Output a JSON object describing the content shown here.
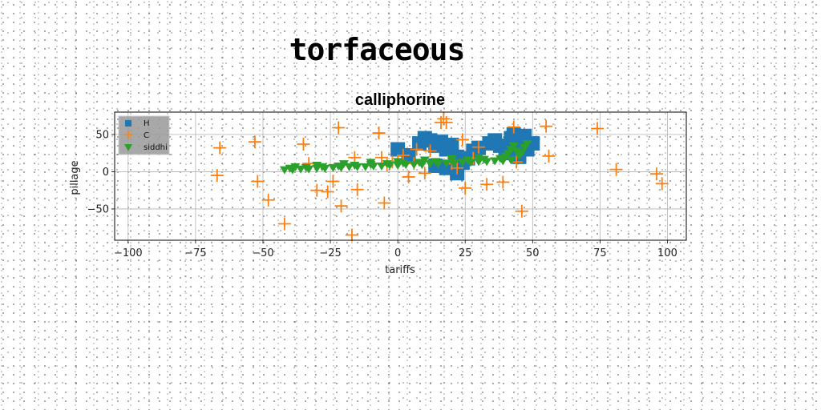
{
  "page": {
    "title": "torfaceous"
  },
  "chart_data": {
    "type": "scatter",
    "title": "calliphorine",
    "xlabel": "tariffs",
    "ylabel": "pillage",
    "xlim": [
      -105,
      107
    ],
    "ylim": [
      -92,
      80
    ],
    "xticks": [
      -100,
      -75,
      -50,
      -25,
      0,
      25,
      50,
      75,
      100
    ],
    "xtick_labels": [
      "−100",
      "−75",
      "−50",
      "−25",
      "0",
      "25",
      "50",
      "75",
      "100"
    ],
    "yticks": [
      -50,
      0,
      50
    ],
    "ytick_labels": [
      "−50",
      "0",
      "50"
    ],
    "grid": true,
    "legend_position": "top-left",
    "series": [
      {
        "name": "H",
        "marker": "square",
        "color": "#1f77b4",
        "x": [
          0,
          4,
          8,
          10,
          12,
          14,
          16,
          18,
          20,
          22,
          26,
          28,
          30,
          34,
          36,
          38,
          40,
          42,
          43,
          44,
          46,
          47,
          48,
          50,
          24,
          18,
          14,
          22,
          45,
          41
        ],
        "y": [
          30,
          22,
          38,
          45,
          42,
          35,
          40,
          30,
          36,
          20,
          18,
          28,
          32,
          38,
          42,
          35,
          30,
          45,
          50,
          40,
          35,
          48,
          30,
          38,
          12,
          5,
          8,
          -2,
          20,
          25
        ]
      },
      {
        "name": "C",
        "marker": "plus",
        "color": "#ff7f0e",
        "x": [
          -66,
          -67,
          -53,
          -52,
          -48,
          -42,
          -35,
          -33,
          -30,
          -26,
          -24,
          -22,
          -21,
          -17,
          -16,
          -15,
          -7,
          -6,
          -5,
          -4,
          -2,
          0,
          2,
          4,
          6,
          7,
          10,
          12,
          16,
          17,
          18,
          20,
          24,
          25,
          28,
          30,
          33,
          39,
          43,
          44,
          46,
          55,
          56,
          74,
          81,
          96,
          98,
          22
        ],
        "y": [
          32,
          -5,
          40,
          -13,
          -38,
          -70,
          37,
          11,
          -25,
          -27,
          -13,
          59,
          -46,
          -85,
          19,
          -24,
          52,
          19,
          -42,
          9,
          13,
          14,
          22,
          -7,
          11,
          30,
          -2,
          28,
          66,
          71,
          66,
          11,
          43,
          -22,
          18,
          33,
          -17,
          -14,
          60,
          13,
          -53,
          61,
          21,
          58,
          3,
          -3,
          -16,
          5
        ]
      },
      {
        "name": "siddhi",
        "marker": "triangle-down",
        "color": "#2ca02c",
        "x": [
          -42,
          -39,
          -36,
          -33,
          -30,
          -27,
          -24,
          -21,
          -18,
          -15,
          -12,
          -9,
          -6,
          -3,
          0,
          3,
          6,
          9,
          12,
          15,
          18,
          21,
          24,
          27,
          30,
          33,
          36,
          39,
          42,
          -40,
          -34,
          -28,
          -22,
          -16,
          -10,
          -4,
          2,
          8,
          14,
          20,
          26,
          32,
          38,
          -38,
          -30,
          -20,
          -10,
          0,
          10,
          20,
          30,
          40,
          41,
          42,
          43,
          44,
          45,
          46,
          47,
          48
        ],
        "y": [
          3,
          3,
          4,
          4,
          5,
          5,
          6,
          6,
          7,
          7,
          7,
          8,
          8,
          9,
          9,
          10,
          10,
          10,
          11,
          11,
          12,
          12,
          13,
          13,
          14,
          14,
          15,
          15,
          16,
          5,
          6,
          7,
          8,
          9,
          10,
          11,
          12,
          13,
          14,
          15,
          16,
          17,
          18,
          7,
          9,
          11,
          13,
          14,
          16,
          18,
          19,
          21,
          25,
          30,
          35,
          28,
          22,
          26,
          33,
          38
        ]
      }
    ]
  }
}
